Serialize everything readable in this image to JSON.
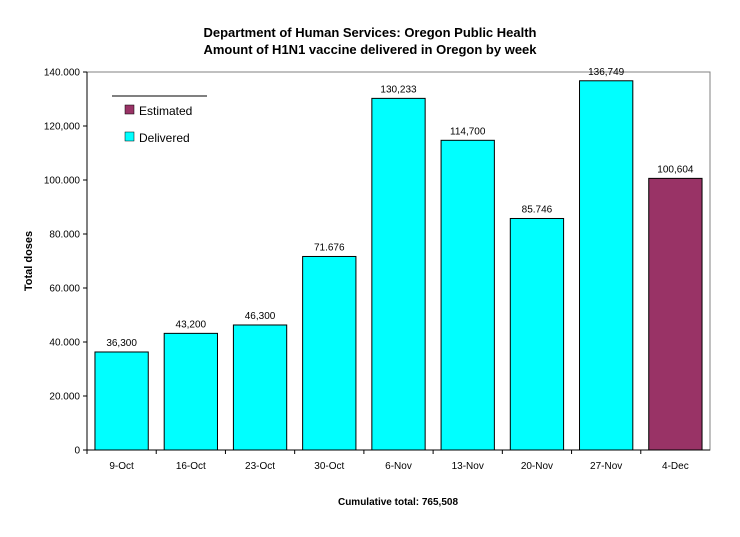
{
  "chart_data": {
    "type": "bar",
    "title": "Department of Human Services: Oregon Public Health",
    "subtitle": "Amount of H1N1 vaccine delivered in Oregon by week",
    "ylabel": "Total doses",
    "xlabel": "",
    "ylim": [
      0,
      140000
    ],
    "yticks": [
      0,
      20000,
      40000,
      60000,
      80000,
      100000,
      120000,
      140000
    ],
    "ytick_labels": [
      "0",
      "20.000",
      "40.000",
      "60.000",
      "80.000",
      "100.000",
      "120,000",
      "140.000"
    ],
    "categories": [
      "9-Oct",
      "16-Oct",
      "23-Oct",
      "30-Oct",
      "6-Nov",
      "13-Nov",
      "20-Nov",
      "27-Nov",
      "4-Dec"
    ],
    "values": [
      36300,
      43200,
      46300,
      71676,
      130233,
      114700,
      85746,
      136749,
      100604
    ],
    "value_labels": [
      "36,300",
      "43,200",
      "46,300",
      "71.676",
      "130,233",
      "114,700",
      "85.746",
      "136,749",
      "100,604"
    ],
    "status": [
      "Delivered",
      "Delivered",
      "Delivered",
      "Delivered",
      "Delivered",
      "Delivered",
      "Delivered",
      "Delivered",
      "Estimated"
    ],
    "legend": {
      "placement": "top-left",
      "entries": [
        {
          "label": "Estimated",
          "color": "#993366"
        },
        {
          "label": "Delivered",
          "color": "#00ffff"
        }
      ]
    },
    "colors": {
      "Delivered": "#00ffff",
      "Estimated": "#993366"
    },
    "grid": false,
    "footer": "Cumulative total: 765,508"
  }
}
